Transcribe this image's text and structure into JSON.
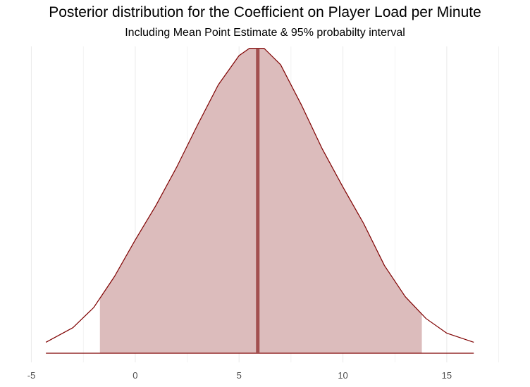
{
  "chart_data": {
    "type": "area",
    "title": "Posterior distribution for the Coefficient on Player Load per Minute",
    "subtitle": "Including Mean Point Estimate & 95% probabilty interval",
    "xlabel": "",
    "ylabel": "",
    "xlim": [
      -5.9,
      18.6
    ],
    "ylim": [
      0,
      0.084
    ],
    "x_ticks": [
      -5,
      0,
      5,
      10,
      15
    ],
    "x_tick_labels": [
      "-5",
      "0",
      "5",
      "10",
      "15"
    ],
    "grid": "vertical",
    "series": [
      {
        "x": [
          -4.3,
          -3,
          -2,
          -1,
          0,
          1,
          2,
          3,
          4,
          5,
          5.5,
          6.2,
          7,
          8,
          9,
          10,
          11,
          12,
          13,
          14,
          15,
          16.3
        ],
        "y": [
          0.003,
          0.007,
          0.0125,
          0.021,
          0.031,
          0.0405,
          0.051,
          0.0625,
          0.0735,
          0.0815,
          0.0835,
          0.0835,
          0.079,
          0.068,
          0.056,
          0.0455,
          0.0355,
          0.024,
          0.0155,
          0.0095,
          0.0055,
          0.003
        ]
      }
    ],
    "mean_point_estimate": 5.9,
    "interval_95": [
      -1.7,
      13.8
    ],
    "colors": {
      "fill": "#dcbcbc",
      "outline": "#7f0000",
      "mean_line": "#a25050",
      "grid": "#ebebeb"
    }
  }
}
